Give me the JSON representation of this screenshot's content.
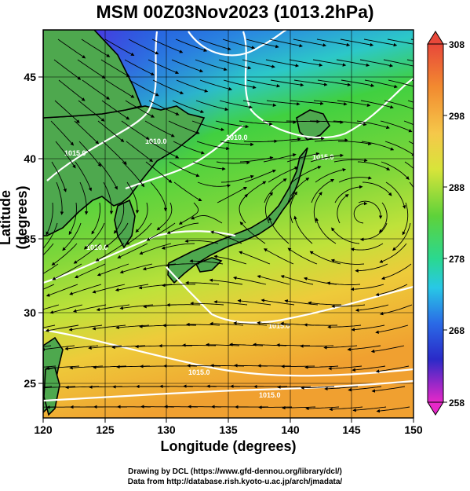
{
  "title": "MSM 00Z03Nov2023 (1013.2hPa)",
  "axes": {
    "xlabel": "Longitude (degrees)",
    "ylabel": "Latitude  (degrees)",
    "xticks": [
      "120",
      "125",
      "130",
      "135",
      "140",
      "145",
      "150"
    ],
    "yticks": [
      "25",
      "30",
      "35",
      "40",
      "45"
    ]
  },
  "colorbar": {
    "labels": [
      "308",
      "298",
      "288",
      "278",
      "268",
      "258"
    ],
    "colors": [
      "#e8483a",
      "#f58a30",
      "#f7c84a",
      "#e6e83a",
      "#a8e03a",
      "#3cd23c",
      "#2ad8a0",
      "#28c8e6",
      "#2a78e6",
      "#2a2ad2",
      "#9a28c8",
      "#e628c8"
    ]
  },
  "contour_labels": [
    "1010.0",
    "1015.0",
    "1010.0",
    "1015.0",
    "1010.0",
    "1015.0",
    "1015.0",
    "1015.0"
  ],
  "credit": {
    "line1": "Drawing by DCL (https://www.gfd-dennou.org/library/dcl/)",
    "line2": "Data from http://database.rish.kyoto-u.ac.jp/arch/jmadata/"
  }
}
